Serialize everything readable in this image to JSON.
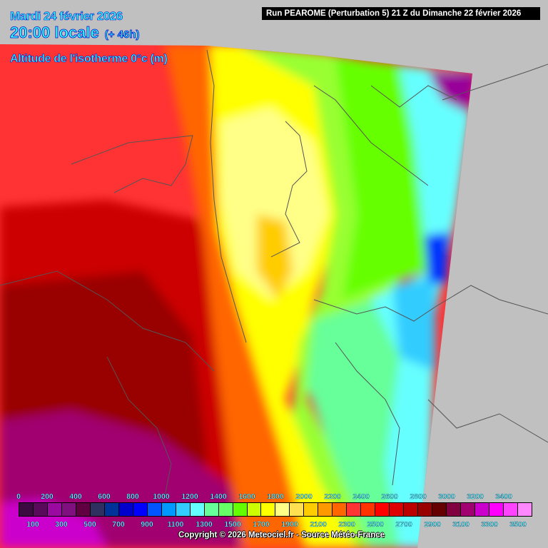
{
  "header": {
    "date": "Mardi 24 février 2026",
    "time": "20:00 locale",
    "lead": "(+ 46h)",
    "parameter": "Altitude de l'isotherme 0°c (m)",
    "run": "Run PEAROME (Perturbation 5) 21 Z du Dimanche 22 février 2026"
  },
  "legend": {
    "top_labels": [
      "0",
      "200",
      "400",
      "600",
      "800",
      "1000",
      "1200",
      "1400",
      "1600",
      "1800",
      "2000",
      "2200",
      "2400",
      "2600",
      "2800",
      "3000",
      "3200",
      "3400"
    ],
    "bottom_labels": [
      "100",
      "300",
      "500",
      "700",
      "900",
      "1100",
      "1300",
      "1500",
      "1700",
      "1900",
      "2100",
      "2300",
      "2500",
      "2700",
      "2900",
      "3100",
      "3300",
      "3500"
    ],
    "colors": [
      "#3a0a40",
      "#5a0a5a",
      "#9a0aa0",
      "#801080",
      "#600040",
      "#303060",
      "#003399",
      "#0000cc",
      "#0000ff",
      "#0055ff",
      "#0099ff",
      "#33ccff",
      "#66ffff",
      "#66ff99",
      "#66ff66",
      "#66ff00",
      "#ccff00",
      "#ffff00",
      "#ffff88",
      "#ffe050",
      "#ffcc00",
      "#ff9900",
      "#ff6600",
      "#ff3333",
      "#ff3300",
      "#ff0000",
      "#dd0000",
      "#bb0000",
      "#990000",
      "#660000",
      "#800040",
      "#a00070",
      "#cc00cc",
      "#ff00ff",
      "#ff44ff",
      "#ff88ff"
    ]
  },
  "footer": {
    "copyright": "Copyright © 2026 Meteociel.fr - Source Météo-France"
  },
  "map": {
    "background": "#c0c0c0",
    "border_color": "#555555"
  }
}
